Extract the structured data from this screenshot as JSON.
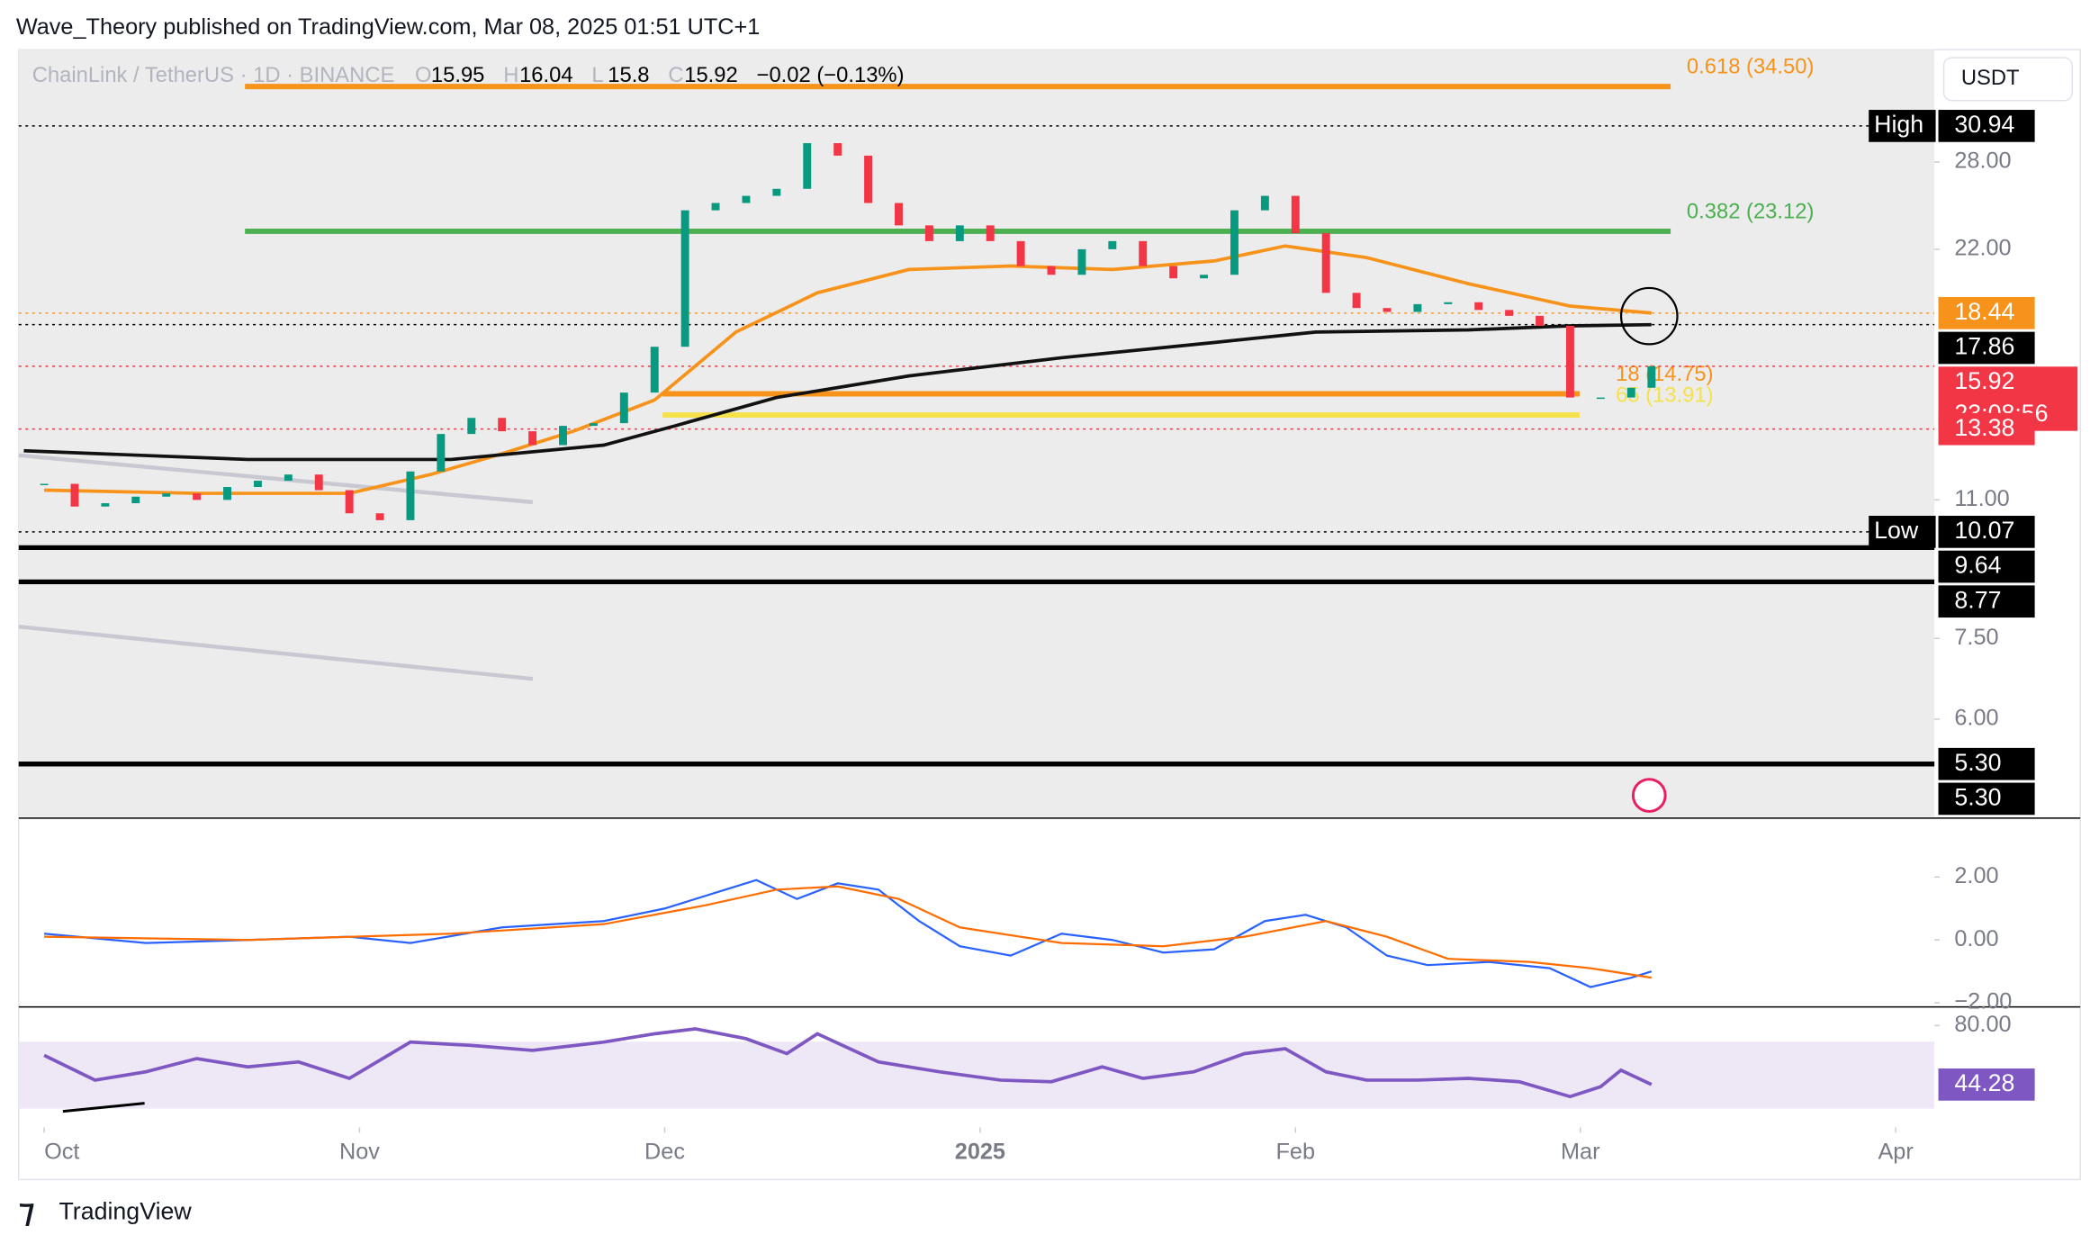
{
  "header": {
    "byline": "Wave_Theory published on TradingView.com, Mar 08, 2025 01:51 UTC+1",
    "logo": "TradingView"
  },
  "chart_data": {
    "type": "candlestick",
    "title": "ChainLink / TetherUS · 1D · BINANCE",
    "ohlc": [
      {
        "key": "O",
        "value": 15.95
      },
      {
        "key": "H",
        "value": 16.04
      },
      {
        "key": "L",
        "value": 15.8
      },
      {
        "key": "C",
        "value": 15.92
      }
    ],
    "change": "−0.02 (−0.13%)",
    "currency": "USDT",
    "countdown": "23:08:56",
    "x": [
      0,
      3,
      6,
      9,
      12,
      15,
      18,
      21,
      24,
      27,
      30,
      33,
      36,
      39,
      42,
      45,
      48,
      51,
      54,
      57,
      60,
      63,
      66,
      69,
      72,
      75,
      78,
      81,
      84,
      87,
      90,
      93,
      96,
      99,
      102,
      105,
      108,
      111,
      114,
      117,
      120,
      123,
      126,
      129,
      132,
      135,
      138,
      141,
      144,
      147,
      150,
      153,
      156,
      158
    ],
    "closes": [
      11.5,
      10.8,
      10.9,
      11.1,
      11.2,
      11.0,
      11.4,
      11.6,
      11.8,
      11.3,
      10.6,
      10.4,
      11.9,
      13.2,
      13.8,
      13.3,
      12.8,
      13.5,
      13.6,
      14.8,
      16.8,
      24.5,
      25.0,
      25.5,
      26.0,
      29.5,
      28.5,
      25.0,
      23.5,
      22.5,
      23.5,
      22.5,
      21.0,
      20.5,
      22.0,
      22.5,
      21.0,
      20.3,
      20.5,
      24.5,
      25.5,
      23.0,
      19.5,
      18.7,
      18.5,
      18.9,
      19.0,
      18.6,
      18.3,
      17.8,
      14.6,
      14.6,
      15.0,
      15.92
    ],
    "up_color": "#089981",
    "down_color": "#f23645",
    "log_scale": true,
    "ylim": [
      4.58,
      38.2
    ],
    "yticks": [
      {
        "value": 28,
        "label": "28.00"
      },
      {
        "value": 22,
        "label": "22.00"
      },
      {
        "value": 11,
        "label": "11.00"
      },
      {
        "value": 7.5,
        "label": "7.50"
      },
      {
        "value": 6,
        "label": "6.00"
      }
    ],
    "xlim": [
      -2.5,
      185.8
    ],
    "xticks": [
      {
        "value": 0,
        "label": "Oct"
      },
      {
        "value": 31,
        "label": "Nov"
      },
      {
        "value": 61,
        "label": "Dec"
      },
      {
        "value": 92,
        "label": "2025"
      },
      {
        "value": 123,
        "label": "Feb"
      },
      {
        "value": 151,
        "label": "Mar"
      },
      {
        "value": 182,
        "label": "Apr"
      }
    ],
    "moving_averages": [
      {
        "color": "#f7931a",
        "x": [
          0,
          15,
          30,
          38,
          45,
          52,
          60,
          68,
          76,
          85,
          95,
          105,
          115,
          122,
          130,
          140,
          150,
          158
        ],
        "values": [
          11.3,
          11.2,
          11.2,
          11.8,
          12.5,
          13.3,
          14.5,
          17.5,
          19.5,
          20.8,
          21.0,
          20.8,
          21.3,
          22.2,
          21.5,
          20.0,
          18.8,
          18.44
        ]
      },
      {
        "color": "#111111",
        "x": [
          -2,
          20,
          40,
          55,
          62,
          72,
          85,
          100,
          115,
          125,
          140,
          150,
          158
        ],
        "values": [
          12.6,
          12.3,
          12.3,
          12.8,
          13.5,
          14.6,
          15.5,
          16.3,
          17.0,
          17.5,
          17.6,
          17.8,
          17.86
        ]
      }
    ],
    "fib_levels": [
      {
        "value": 34.5,
        "label": "0.618 (34.50)",
        "color": "#f7931a"
      },
      {
        "value": 23.12,
        "label": "0.382 (23.12)",
        "color": "#4caf50"
      },
      {
        "value": 14.75,
        "label": "18 (14.75)",
        "color": "#f7931a"
      },
      {
        "value": 13.91,
        "label": "65 (13.91)",
        "color": "#f5e14a"
      }
    ],
    "price_labels": [
      {
        "value": 30.94,
        "tag": "High",
        "color": "#000000"
      },
      {
        "value": 18.44,
        "color": "#f7931a"
      },
      {
        "value": 17.86,
        "color": "#000000"
      },
      {
        "value": 15.92,
        "color": "#f23645"
      },
      {
        "value": 13.38,
        "color": "#f23645"
      },
      {
        "value": 10.07,
        "tag": "Low",
        "color": "#000000"
      },
      {
        "value": 9.64,
        "color": "#000000"
      },
      {
        "value": 8.77,
        "color": "#000000"
      },
      {
        "value": 5.3,
        "label": "5.30",
        "color": "#000000"
      },
      {
        "value": 5.3,
        "label": "5.30",
        "color": "#000000"
      }
    ],
    "macd": {
      "ylim": [
        -2.13,
        3.83
      ],
      "yticks": [
        {
          "value": 2,
          "label": "2.00"
        },
        {
          "value": 0,
          "label": "0.00"
        },
        {
          "value": -2,
          "label": "−2.00"
        }
      ],
      "series": [
        {
          "color": "#2962ff",
          "x": [
            0,
            10,
            20,
            30,
            36,
            45,
            55,
            61,
            66,
            70,
            74,
            78,
            82,
            86,
            90,
            95,
            100,
            105,
            110,
            115,
            120,
            124,
            128,
            132,
            136,
            142,
            148,
            152,
            156,
            158
          ],
          "values": [
            0.2,
            -0.1,
            0,
            0.1,
            -0.1,
            0.4,
            0.6,
            1.0,
            1.5,
            1.9,
            1.3,
            1.8,
            1.6,
            0.6,
            -0.2,
            -0.5,
            0.2,
            0,
            -0.4,
            -0.3,
            0.6,
            0.8,
            0.4,
            -0.5,
            -0.8,
            -0.7,
            -0.9,
            -1.5,
            -1.2,
            -1.0
          ]
        },
        {
          "color": "#ff6d00",
          "x": [
            0,
            20,
            40,
            55,
            65,
            72,
            78,
            84,
            90,
            100,
            110,
            118,
            126,
            132,
            138,
            146,
            152,
            158
          ],
          "values": [
            0.1,
            0,
            0.2,
            0.5,
            1.1,
            1.6,
            1.7,
            1.3,
            0.4,
            -0.1,
            -0.2,
            0.1,
            0.6,
            0.1,
            -0.6,
            -0.7,
            -0.9,
            -1.2
          ]
        }
      ]
    },
    "rsi": {
      "ylim": [
        29.7,
        89.7
      ],
      "yticks": [
        {
          "value": 80,
          "label": "80.00"
        }
      ],
      "color": "#7e57c2",
      "x": [
        0,
        5,
        10,
        15,
        20,
        25,
        30,
        36,
        42,
        48,
        55,
        60,
        64,
        69,
        73,
        76,
        82,
        88,
        94,
        99,
        104,
        108,
        113,
        118,
        122,
        126,
        130,
        135,
        140,
        145,
        150,
        153,
        155,
        158
      ],
      "values": [
        62,
        47,
        52,
        60,
        55,
        58,
        48,
        70,
        68,
        65,
        70,
        75,
        78,
        72,
        63,
        75,
        58,
        52,
        47,
        46,
        55,
        48,
        52,
        63,
        66,
        52,
        47,
        47,
        48,
        46,
        37,
        43,
        53,
        44.28
      ]
    }
  }
}
